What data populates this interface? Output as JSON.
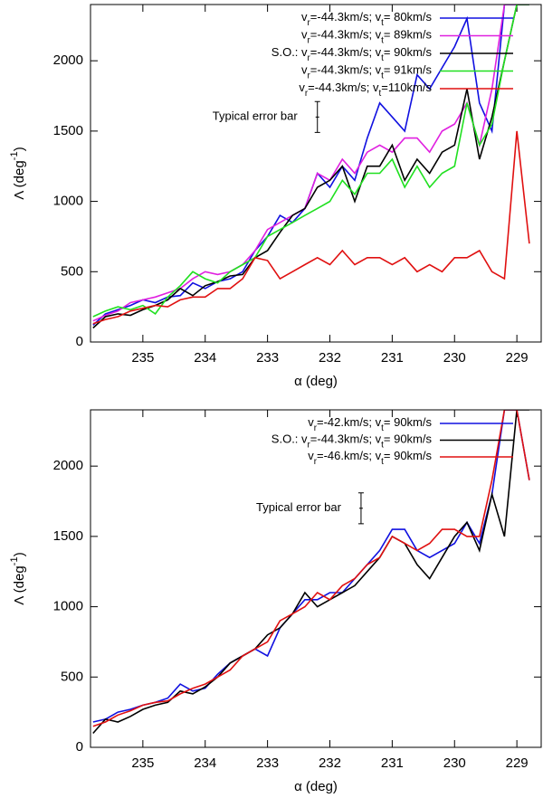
{
  "chart_data": [
    {
      "type": "line",
      "xlabel": "α (deg)",
      "ylabel": "Λ (deg-1)",
      "x": [
        235.8,
        235.6,
        235.4,
        235.2,
        235.0,
        234.8,
        234.6,
        234.4,
        234.2,
        234.0,
        233.8,
        233.6,
        233.4,
        233.2,
        233.0,
        232.8,
        232.6,
        232.4,
        232.2,
        232.0,
        231.8,
        231.6,
        231.4,
        231.2,
        231.0,
        230.8,
        230.6,
        230.4,
        230.2,
        230.0,
        229.8,
        229.6,
        229.4,
        229.2,
        229.0,
        228.8
      ],
      "series": [
        {
          "name": "vr=-44.3km/s; vt= 80km/s",
          "color": "#1010e0",
          "values": [
            120,
            200,
            230,
            260,
            300,
            280,
            320,
            330,
            420,
            380,
            430,
            450,
            500,
            650,
            750,
            900,
            850,
            950,
            1200,
            1100,
            1250,
            1150,
            1450,
            1700,
            1600,
            1500,
            1900,
            1800,
            1950,
            2100,
            2300,
            1700,
            1500,
            2400,
            2400,
            2400
          ]
        },
        {
          "name": "vr=-44.3km/s; vt= 89km/s",
          "color": "#e020e0",
          "values": [
            150,
            190,
            220,
            280,
            300,
            320,
            350,
            380,
            450,
            500,
            480,
            500,
            550,
            650,
            800,
            850,
            900,
            950,
            1200,
            1150,
            1300,
            1200,
            1350,
            1400,
            1350,
            1450,
            1450,
            1350,
            1500,
            1550,
            1700,
            1400,
            1800,
            2400,
            2400,
            2400
          ]
        },
        {
          "name": "S.O.: vr=-44.3km/s; vt= 90km/s",
          "color": "#000000",
          "values": [
            100,
            180,
            200,
            190,
            230,
            260,
            300,
            380,
            330,
            400,
            430,
            470,
            480,
            600,
            650,
            780,
            900,
            950,
            1100,
            1150,
            1250,
            1000,
            1250,
            1250,
            1400,
            1150,
            1300,
            1200,
            1350,
            1400,
            1800,
            1300,
            1600,
            2000,
            2400,
            2400
          ]
        },
        {
          "name": "vr=-44.3km/s; vt= 91km/s",
          "color": "#20e020",
          "values": [
            180,
            220,
            250,
            230,
            260,
            200,
            320,
            400,
            500,
            450,
            420,
            500,
            550,
            600,
            750,
            800,
            850,
            900,
            950,
            1000,
            1150,
            1050,
            1200,
            1200,
            1300,
            1100,
            1250,
            1100,
            1200,
            1250,
            1700,
            1400,
            1550,
            2000,
            2400,
            2400
          ]
        },
        {
          "name": "vr=-44.3km/s; vt=110km/s",
          "color": "#e01010",
          "values": [
            130,
            160,
            180,
            220,
            240,
            260,
            250,
            300,
            320,
            320,
            380,
            380,
            450,
            600,
            580,
            450,
            500,
            550,
            600,
            550,
            650,
            550,
            600,
            600,
            550,
            600,
            500,
            550,
            500,
            600,
            600,
            650,
            500,
            450,
            1500,
            700
          ]
        }
      ],
      "annotation": "Typical error bar",
      "error_bar": {
        "x": 232.2,
        "value": 1600,
        "error": 110
      },
      "xlim": [
        235.84,
        228.61
      ],
      "ylim": [
        0,
        2400
      ],
      "xticks": [
        235,
        234,
        233,
        232,
        231,
        230,
        229
      ],
      "yticks": [
        0,
        500,
        1000,
        1500,
        2000
      ],
      "legend": "upper right"
    },
    {
      "type": "line",
      "xlabel": "α (deg)",
      "ylabel": "Λ (deg-1)",
      "x": [
        235.8,
        235.6,
        235.4,
        235.2,
        235.0,
        234.8,
        234.6,
        234.4,
        234.2,
        234.0,
        233.8,
        233.6,
        233.4,
        233.2,
        233.0,
        232.8,
        232.6,
        232.4,
        232.2,
        232.0,
        231.8,
        231.6,
        231.4,
        231.2,
        231.0,
        230.8,
        230.6,
        230.4,
        230.2,
        230.0,
        229.8,
        229.6,
        229.4,
        229.2,
        229.0,
        228.8
      ],
      "series": [
        {
          "name": "vr=-42.km/s; vt= 90km/s",
          "color": "#1010e0",
          "values": [
            180,
            200,
            250,
            270,
            300,
            320,
            350,
            450,
            400,
            420,
            520,
            600,
            650,
            700,
            650,
            850,
            950,
            1050,
            1050,
            1100,
            1100,
            1200,
            1300,
            1400,
            1550,
            1550,
            1400,
            1350,
            1400,
            1450,
            1600,
            1450,
            1800,
            2400,
            2400,
            1900
          ]
        },
        {
          "name": "S.O.: vr=-44.3km/s; vt= 90km/s",
          "color": "#000000",
          "values": [
            100,
            200,
            180,
            220,
            270,
            300,
            320,
            400,
            380,
            430,
            500,
            600,
            650,
            700,
            800,
            850,
            950,
            1100,
            1000,
            1050,
            1100,
            1150,
            1250,
            1350,
            1500,
            1450,
            1300,
            1200,
            1350,
            1500,
            1600,
            1400,
            1800,
            1500,
            2400,
            2400
          ]
        },
        {
          "name": "vr=-46.km/s; vt= 90km/s",
          "color": "#e01010",
          "values": [
            150,
            180,
            230,
            260,
            300,
            320,
            330,
            380,
            420,
            450,
            500,
            550,
            650,
            700,
            750,
            900,
            950,
            1000,
            1100,
            1050,
            1150,
            1200,
            1300,
            1350,
            1500,
            1450,
            1400,
            1450,
            1550,
            1550,
            1500,
            1500,
            1900,
            2400,
            2400,
            1900
          ]
        }
      ],
      "annotation": "Typical error bar",
      "error_bar": {
        "x": 231.5,
        "value": 1700,
        "error": 110
      },
      "xlim": [
        235.84,
        228.61
      ],
      "ylim": [
        0,
        2400
      ],
      "xticks": [
        235,
        234,
        233,
        232,
        231,
        230,
        229
      ],
      "yticks": [
        0,
        500,
        1000,
        1500,
        2000
      ],
      "legend": "upper right"
    }
  ]
}
